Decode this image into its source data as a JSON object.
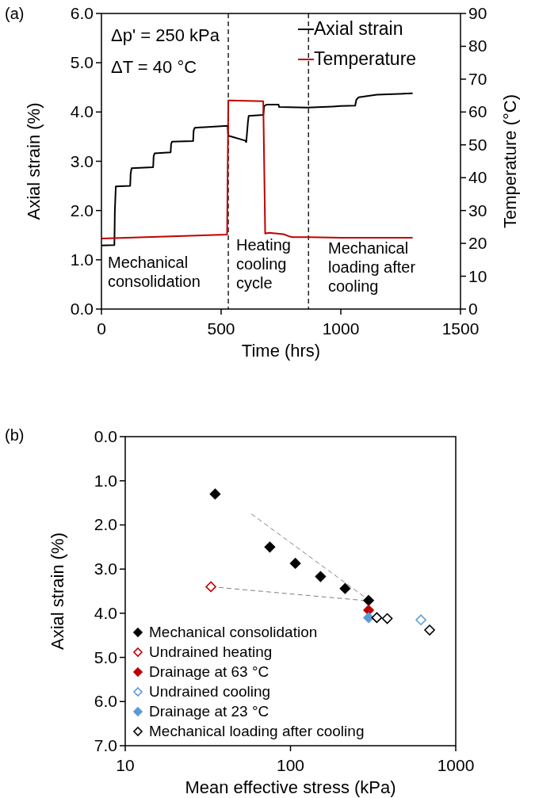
{
  "chart_data": [
    {
      "type": "line",
      "xlabel": "Time (hrs)",
      "ylabel": "Axial strain (%)",
      "y2label": "Temperature (°C)",
      "xlim": [
        0,
        1500
      ],
      "xticks": [
        0,
        500,
        1000,
        1500
      ],
      "ylim": [
        0,
        6
      ],
      "yticks": [
        {
          "value": 0,
          "label": "0.0"
        },
        {
          "value": 1,
          "label": "1.0"
        },
        {
          "value": 2,
          "label": "2.0"
        },
        {
          "value": 3,
          "label": "3.0"
        },
        {
          "value": 4,
          "label": "4.0"
        },
        {
          "value": 5,
          "label": "5.0"
        },
        {
          "value": 6,
          "label": "6.0"
        }
      ],
      "y2lim": [
        0,
        90
      ],
      "y2ticks": [
        0,
        10,
        20,
        30,
        40,
        50,
        60,
        70,
        80,
        90
      ],
      "legend": "top right",
      "grid": false,
      "series": [
        {
          "name": "Axial strain",
          "color": "#000000",
          "x": [
            0,
            54,
            56,
            60,
            120,
            122,
            126,
            216,
            218,
            222,
            289,
            291,
            295,
            383,
            385,
            390,
            527,
            530,
            536,
            600,
            605,
            612,
            615,
            676,
            680,
            690,
            740,
            742,
            860,
            966,
            1000,
            1060,
            1065,
            1075,
            1150,
            1300
          ],
          "values": [
            1.29,
            1.3,
            2.0,
            2.49,
            2.5,
            2.75,
            2.86,
            2.88,
            3.1,
            3.16,
            3.18,
            3.35,
            3.4,
            3.41,
            3.62,
            3.68,
            3.72,
            3.52,
            3.51,
            3.42,
            3.39,
            3.8,
            3.92,
            3.94,
            4.12,
            4.15,
            4.15,
            4.1,
            4.09,
            4.11,
            4.12,
            4.13,
            4.25,
            4.3,
            4.35,
            4.38
          ]
        },
        {
          "name": "Temperature",
          "color": "#c00000",
          "axis": "y2",
          "x": [
            0,
            525,
            530,
            535,
            676,
            684,
            700,
            760,
            790,
            800,
            865,
            1000,
            1300
          ],
          "values": [
            21.5,
            22.7,
            63.5,
            63.5,
            63.3,
            23,
            23.2,
            22.8,
            22,
            21.9,
            21.9,
            21.7,
            21.7
          ]
        }
      ],
      "ref_lines": [
        {
          "axis": "x",
          "value": 530,
          "color": "#000000",
          "line_style": "dashed"
        },
        {
          "axis": "x",
          "value": 865,
          "color": "#000000",
          "line_style": "dashed"
        }
      ],
      "annotations": [
        "(a)",
        "Δp' = 250 kPa",
        "ΔT = 40 °C",
        "Mechanical\nconsolidation",
        "Heating\ncooling\ncycle",
        "Mechanical\nloading after\ncooling"
      ]
    },
    {
      "type": "scatter",
      "xlabel": "Mean effective stress (kPa)",
      "ylabel": "Axial strain (%)",
      "log": "x",
      "xlim": [
        10,
        1000
      ],
      "xticks": [
        10,
        100,
        1000
      ],
      "ylim": [
        7,
        0
      ],
      "yticks": [
        {
          "value": 0,
          "label": "0.0"
        },
        {
          "value": 1,
          "label": "1.0"
        },
        {
          "value": 2,
          "label": "2.0"
        },
        {
          "value": 3,
          "label": "3.0"
        },
        {
          "value": 4,
          "label": "4.0"
        },
        {
          "value": 5,
          "label": "5.0"
        },
        {
          "value": 6,
          "label": "6.0"
        },
        {
          "value": 7,
          "label": "7.0"
        }
      ],
      "legend": "bottom left",
      "grid": false,
      "marker": "diamond",
      "series": [
        {
          "type": "line",
          "color": "#7f7f7f",
          "line_style": "dashed",
          "marker": "none",
          "x": [
            58,
            297
          ],
          "values": [
            1.75,
            3.7
          ]
        },
        {
          "type": "line",
          "color": "#7f7f7f",
          "line_style": "dashed",
          "marker": "none",
          "x": [
            33,
            297
          ],
          "values": [
            3.4,
            3.72
          ]
        },
        {
          "name": "Mechanical consolidation",
          "color": "#000000",
          "x": [
            35,
            75,
            107,
            152,
            214,
            297
          ],
          "values": [
            1.3,
            2.5,
            2.87,
            3.17,
            3.44,
            3.71
          ]
        },
        {
          "name": "Undrained heating",
          "color": "#c00000",
          "x": [
            33
          ],
          "values": [
            3.4
          ]
        },
        {
          "name": "Drainage at 63 °C",
          "color": "#c00000",
          "x": [
            297
          ],
          "values": [
            3.93
          ]
        },
        {
          "name": "Undrained cooling",
          "color": "#5b9bd5",
          "x": [
            616
          ],
          "values": [
            4.15
          ]
        },
        {
          "name": "Drainage at 23 °C",
          "color": "#5b9bd5",
          "x": [
            297
          ],
          "values": [
            4.1
          ]
        },
        {
          "name": "Mechanical loading after cooling",
          "color": "#000000",
          "x": [
            333,
            385,
            695
          ],
          "values": [
            4.1,
            4.12,
            4.38
          ]
        }
      ],
      "annotations": [
        "(b)"
      ]
    }
  ]
}
